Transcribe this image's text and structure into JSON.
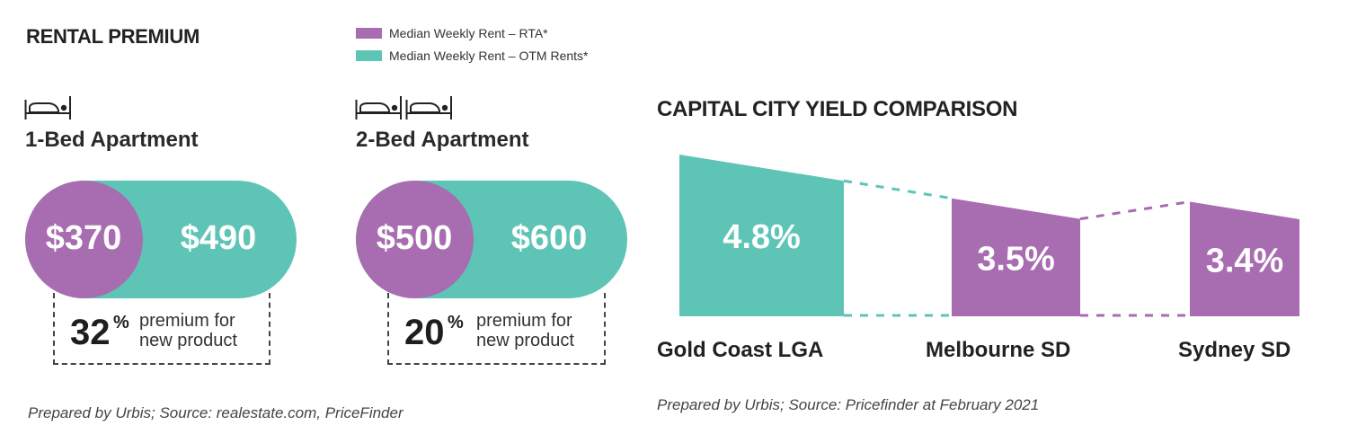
{
  "colors": {
    "rta": "#a86cb0",
    "otm": "#5ec4b6",
    "text": "#222222"
  },
  "rental": {
    "title": "RENTAL PREMIUM",
    "legend": [
      {
        "label": "Median Weekly Rent – RTA*",
        "color": "#a86cb0"
      },
      {
        "label": "Median Weekly Rent – OTM Rents*",
        "color": "#5ec4b6"
      }
    ],
    "apartments": [
      {
        "icon": "bed-icon",
        "beds": 1,
        "title": "1-Bed Apartment",
        "rta": "$370",
        "otm": "$490",
        "premium": "32",
        "premium_pct": "%",
        "premium_line1": "premium for",
        "premium_line2": "new product"
      },
      {
        "icon": "bed-icon",
        "beds": 2,
        "title": "2-Bed Apartment",
        "rta": "$500",
        "otm": "$600",
        "premium": "20",
        "premium_pct": "%",
        "premium_line1": "premium for",
        "premium_line2": "new product"
      }
    ],
    "source": "Prepared by Urbis; Source: realestate.com, PriceFinder"
  },
  "chart_data": {
    "type": "bar",
    "title": "CAPITAL CITY YIELD COMPARISON",
    "categories": [
      "Gold Coast LGA",
      "Melbourne SD",
      "Sydney SD"
    ],
    "values": [
      4.8,
      3.5,
      3.4
    ],
    "value_labels": [
      "4.8%",
      "3.5%",
      "3.4%"
    ],
    "bar_colors": [
      "#5ec4b6",
      "#a86cb0",
      "#a86cb0"
    ],
    "unit": "%",
    "xlabel": "",
    "ylabel": "",
    "grid": false,
    "source": "Prepared by Urbis; Source: Pricefinder at February 2021"
  }
}
